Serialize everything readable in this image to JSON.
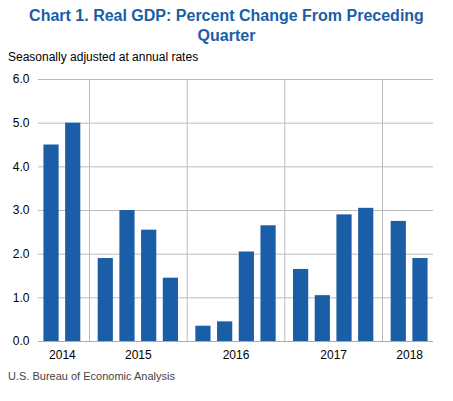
{
  "chart_data": {
    "type": "bar",
    "title": "Chart 1. Real GDP: Percent Change From Preceding Quarter",
    "subtitle": "Seasonally adjusted at annual rates",
    "caption": "U.S. Bureau of Economic Analysis",
    "categories": [
      "2014",
      "2014",
      "2015",
      "2015",
      "2015",
      "2015",
      "2016",
      "2016",
      "2016",
      "2016",
      "2017",
      "2017",
      "2017",
      "2017",
      "2018",
      "2018"
    ],
    "values": [
      4.5,
      5.0,
      1.9,
      3.0,
      2.55,
      1.45,
      0.35,
      0.45,
      2.05,
      2.65,
      1.65,
      1.05,
      2.9,
      3.05,
      2.75,
      1.9
    ],
    "color": "#1a5ea8",
    "ylim": [
      0,
      6
    ],
    "yticks": [
      0,
      1,
      2,
      3,
      4,
      5,
      6
    ],
    "grid": true
  }
}
